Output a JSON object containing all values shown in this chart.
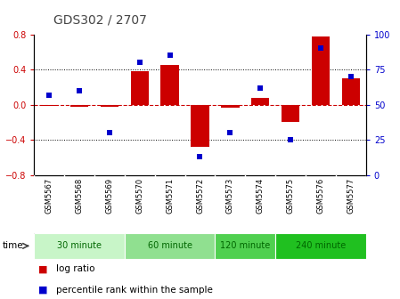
{
  "title": "GDS302 / 2707",
  "samples": [
    "GSM5567",
    "GSM5568",
    "GSM5569",
    "GSM5570",
    "GSM5571",
    "GSM5572",
    "GSM5573",
    "GSM5574",
    "GSM5575",
    "GSM5576",
    "GSM5577"
  ],
  "log_ratio": [
    -0.01,
    -0.02,
    -0.02,
    0.38,
    0.45,
    -0.48,
    -0.03,
    0.08,
    -0.2,
    0.78,
    0.3
  ],
  "percentile": [
    57,
    60,
    30,
    80,
    85,
    13,
    30,
    62,
    25,
    90,
    70
  ],
  "groups": [
    {
      "label": "30 minute",
      "start": 0,
      "end": 3,
      "color": "#c8f5c8"
    },
    {
      "label": "60 minute",
      "start": 3,
      "end": 6,
      "color": "#90e090"
    },
    {
      "label": "120 minute",
      "start": 6,
      "end": 8,
      "color": "#50d050"
    },
    {
      "label": "240 minute",
      "start": 8,
      "end": 11,
      "color": "#20c020"
    }
  ],
  "bar_color": "#cc0000",
  "dot_color": "#0000cc",
  "ylim_left": [
    -0.8,
    0.8
  ],
  "ylim_right": [
    0,
    100
  ],
  "yticks_left": [
    -0.8,
    -0.4,
    0.0,
    0.4,
    0.8
  ],
  "yticks_right": [
    0,
    25,
    50,
    75,
    100
  ],
  "hline_color": "#cc0000",
  "dotted_color": "#000000",
  "bg_color": "#ffffff",
  "plot_bg": "#ffffff",
  "title_fontsize": 10,
  "tick_fontsize": 7,
  "label_fontsize": 6,
  "group_fontsize": 7,
  "legend_fontsize": 7.5,
  "time_label": "time"
}
